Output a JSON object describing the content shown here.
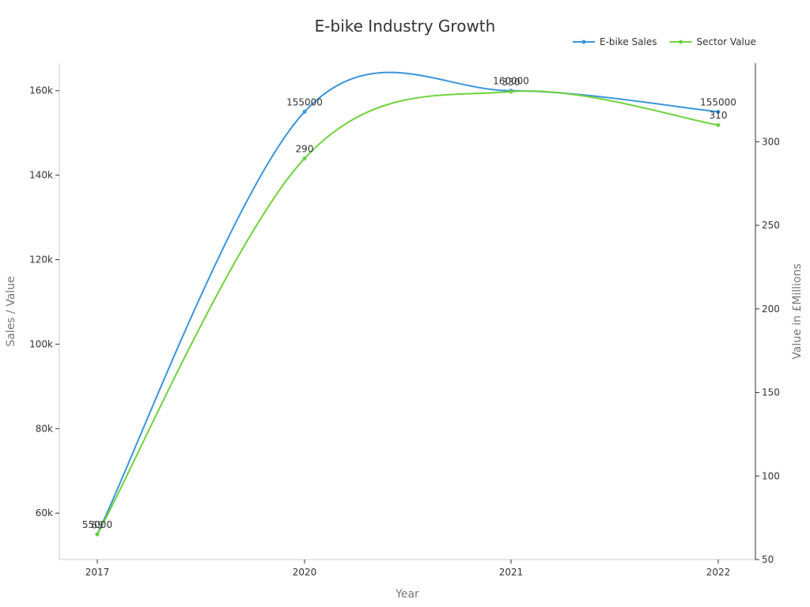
{
  "chart_data": {
    "type": "line",
    "title": "E-bike Industry Growth",
    "xlabel": "Year",
    "ylabel": "Sales / Value",
    "ylabel_right": "Value in £Millions",
    "categories": [
      "2017",
      "2020",
      "2021",
      "2022"
    ],
    "ylim_left": [
      49000,
      166500
    ],
    "ylim_right": [
      50,
      347
    ],
    "left_ticks": [
      {
        "value": 60000,
        "label": "60k"
      },
      {
        "value": 80000,
        "label": "80k"
      },
      {
        "value": 100000,
        "label": "100k"
      },
      {
        "value": 120000,
        "label": "120k"
      },
      {
        "value": 140000,
        "label": "140k"
      },
      {
        "value": 160000,
        "label": "160k"
      }
    ],
    "right_ticks": [
      {
        "value": 50,
        "label": "50"
      },
      {
        "value": 100,
        "label": "100"
      },
      {
        "value": 150,
        "label": "150"
      },
      {
        "value": 200,
        "label": "200"
      },
      {
        "value": 250,
        "label": "250"
      },
      {
        "value": 300,
        "label": "300"
      }
    ],
    "legend_position": "top-right",
    "series": [
      {
        "name": "E-bike Sales",
        "axis": "left",
        "color": "#3a96db",
        "values": [
          55000,
          155000,
          160000,
          155000
        ],
        "labels": [
          "55000",
          "155000",
          "160000",
          "155000"
        ]
      },
      {
        "name": "Sector Value",
        "axis": "right",
        "color": "#6fd23c",
        "values": [
          65,
          290,
          330,
          310
        ],
        "labels": [
          "65",
          "290",
          "330",
          "310"
        ]
      }
    ]
  }
}
